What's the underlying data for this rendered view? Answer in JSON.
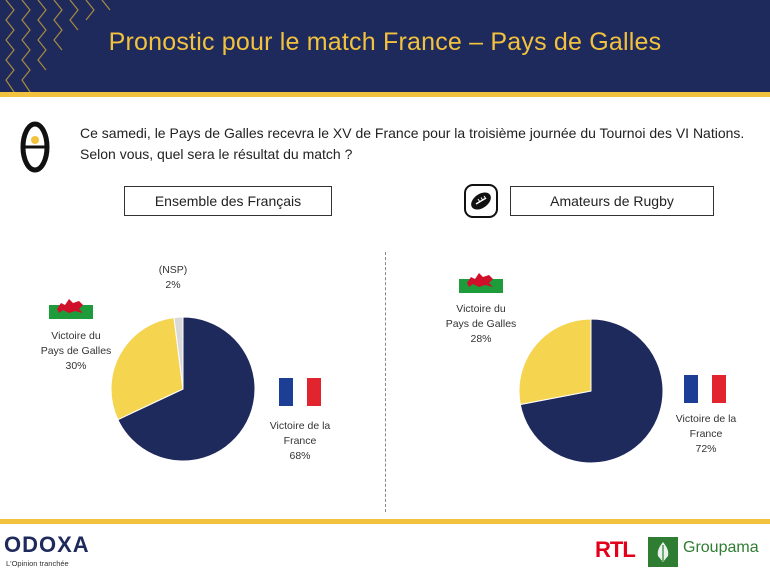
{
  "header": {
    "title": "Pronostic pour le match France – Pays de Galles"
  },
  "question": "Ce samedi, le Pays de Galles recevra le XV de France pour la troisième journée du Tournoi des VI Nations. Selon vous, quel sera le résultat du match ?",
  "groups": {
    "left": "Ensemble des Français",
    "right": "Amateurs de Rugby"
  },
  "left_labels": {
    "nsp_name": "(NSP)",
    "nsp_value": "2%",
    "wales_line1": "Victoire du",
    "wales_line2": "Pays de Galles",
    "wales_value": "30%",
    "france_line1": "Victoire de la",
    "france_line2": "France",
    "france_value": "68%"
  },
  "right_labels": {
    "wales_line1": "Victoire du",
    "wales_line2": "Pays de Galles",
    "wales_value": "28%",
    "france_line1": "Victoire de la",
    "france_line2": "France",
    "france_value": "72%"
  },
  "footer": {
    "odoxa": "ODOXA",
    "odoxa_tagline": "L'Opinion tranchée",
    "rtl": "RTL",
    "groupama": "Groupama"
  },
  "colors": {
    "france": "#1f2a5c",
    "wales": "#f5d44f",
    "nsp": "#d9d9d9",
    "accent": "#f2c23e"
  },
  "chart_data": [
    {
      "type": "pie",
      "title": "Ensemble des Français",
      "categories": [
        "Victoire de la France",
        "Victoire du Pays de Galles",
        "(NSP)"
      ],
      "values": [
        68,
        30,
        2
      ]
    },
    {
      "type": "pie",
      "title": "Amateurs de Rugby",
      "categories": [
        "Victoire de la France",
        "Victoire du Pays de Galles"
      ],
      "values": [
        72,
        28
      ]
    }
  ]
}
